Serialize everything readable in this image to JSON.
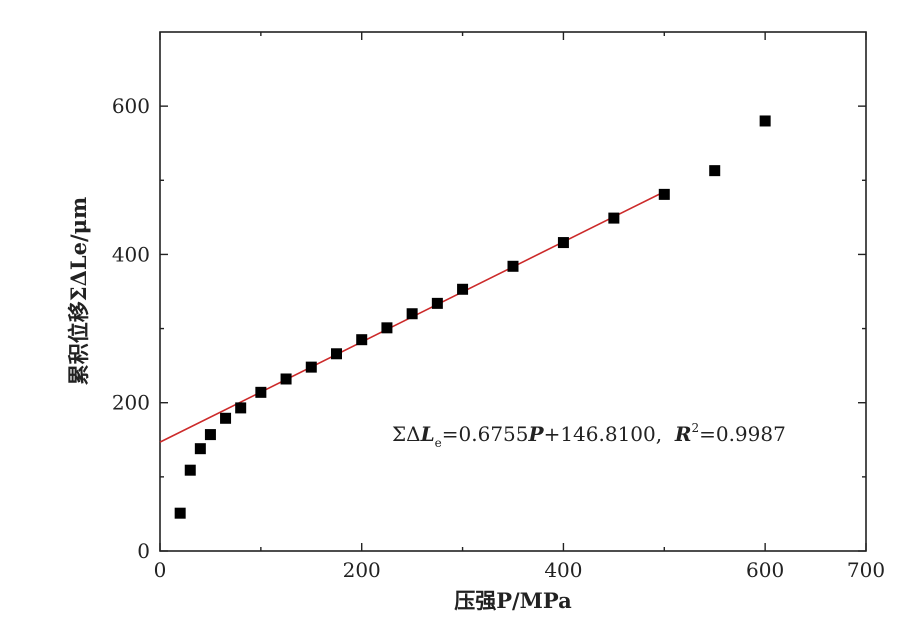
{
  "chart_data": {
    "type": "scatter",
    "xlabel": "压强P/MPa",
    "ylabel": "累积位移ΣΔLe/μm",
    "xlim": [
      0,
      700
    ],
    "ylim": [
      0,
      700
    ],
    "x_ticks": [
      0,
      200,
      400,
      600,
      700
    ],
    "y_ticks": [
      0,
      200,
      400,
      600
    ],
    "points": [
      {
        "x": 20,
        "y": 51
      },
      {
        "x": 30,
        "y": 109
      },
      {
        "x": 40,
        "y": 138
      },
      {
        "x": 50,
        "y": 157
      },
      {
        "x": 65,
        "y": 179
      },
      {
        "x": 80,
        "y": 193
      },
      {
        "x": 100,
        "y": 214
      },
      {
        "x": 125,
        "y": 232
      },
      {
        "x": 150,
        "y": 248
      },
      {
        "x": 175,
        "y": 266
      },
      {
        "x": 200,
        "y": 285
      },
      {
        "x": 225,
        "y": 301
      },
      {
        "x": 250,
        "y": 320
      },
      {
        "x": 275,
        "y": 334
      },
      {
        "x": 300,
        "y": 353
      },
      {
        "x": 350,
        "y": 384
      },
      {
        "x": 400,
        "y": 416
      },
      {
        "x": 450,
        "y": 449
      },
      {
        "x": 500,
        "y": 481
      },
      {
        "x": 550,
        "y": 513
      },
      {
        "x": 600,
        "y": 580
      }
    ],
    "fit_line": {
      "slope": 0.6755,
      "intercept": 146.81,
      "x_start": 0,
      "x_end": 500,
      "color": "#cc2a2a"
    },
    "annotation": {
      "sum_delta": "ΣΔ",
      "L": "L",
      "sub_e": "e",
      "eq_rest": "=0.6755",
      "P": "P",
      "plus": "+146.8100,  ",
      "R": "R",
      "sup2": "2",
      "r_value": "=0.9987"
    },
    "marker_color": "#000000"
  }
}
